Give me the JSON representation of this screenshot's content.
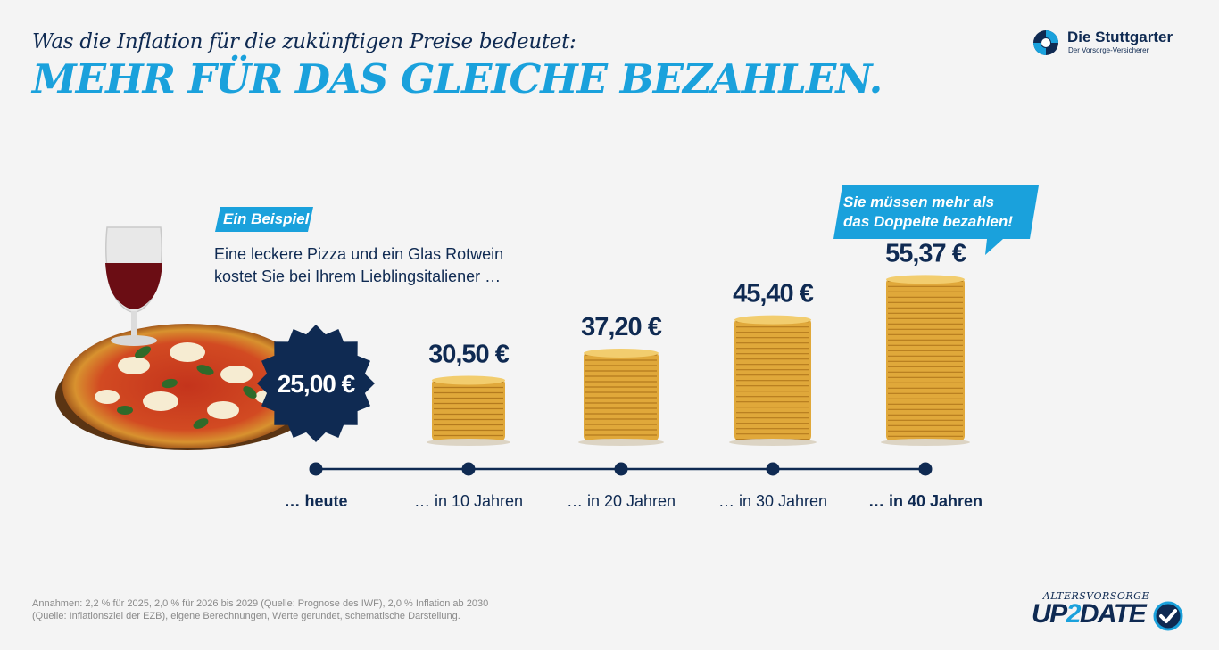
{
  "header": {
    "subtitle": "Was die Inflation für die zukünftigen Preise bedeutet:",
    "title": "MEHR FÜR DAS GLEICHE BEZAHLEN."
  },
  "logo": {
    "name": "Die Stuttgarter",
    "tagline": "Der Vorsorge-Versicherer"
  },
  "example": {
    "badge": "Ein Beispiel",
    "line1": "Eine leckere Pizza und ein Glas Rotwein",
    "line2": "kostet Sie bei Ihrem Lieblingsitaliener …"
  },
  "callout": {
    "line1": "Sie müssen mehr als",
    "line2": "das Doppelte bezahlen!"
  },
  "chart_data": {
    "type": "bar",
    "categories": [
      "… heute",
      "… in 10 Jahren",
      "… in 20 Jahren",
      "… in 30 Jahren",
      "… in 40 Jahren"
    ],
    "values": [
      25.0,
      30.5,
      37.2,
      45.4,
      55.37
    ],
    "value_labels": [
      "25,00 €",
      "30,50 €",
      "37,20 €",
      "45,40 €",
      "55,37 €"
    ],
    "bold_categories": [
      "… heute",
      "… in 40 Jahren"
    ],
    "unit": "€",
    "title": "",
    "xlabel": "",
    "ylabel": ""
  },
  "colors": {
    "navy": "#0f2a52",
    "accent": "#1aa1dc",
    "background": "#f4f4f4",
    "coin": "#e0a83a"
  },
  "footnote": {
    "line1": "Annahmen: 2,2 % für 2025, 2,0 % für 2026 bis 2029 (Quelle: Prognose des IWF), 2,0 % Inflation ab 2030",
    "line2": "(Quelle: Inflationsziel der EZB), eigene Berechnungen, Werte gerundet, schematische Darstellung."
  },
  "campaign_logo": {
    "small": "ALTERSVORSORGE",
    "big_part1": "UP",
    "big_part2": "2",
    "big_part3": "DATE"
  },
  "icons": [
    "stuttgarter-logo-icon",
    "checkmark-icon",
    "pizza-wine-image"
  ]
}
